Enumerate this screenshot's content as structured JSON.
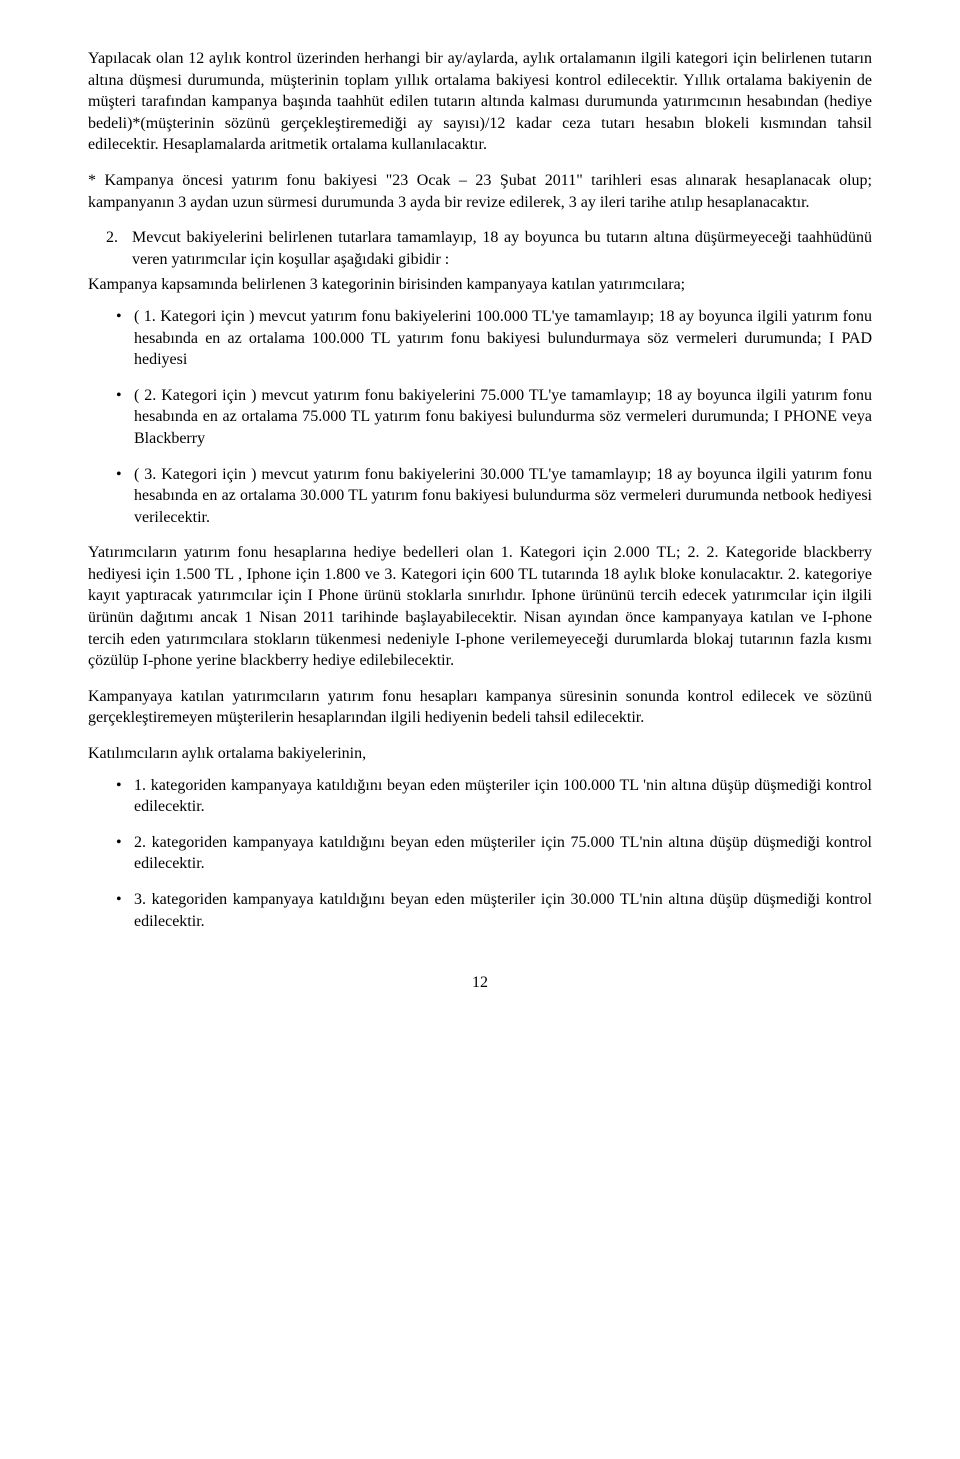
{
  "p1": "Yapılacak olan 12 aylık kontrol üzerinden herhangi bir ay/aylarda, aylık ortalamanın ilgili kategori için belirlenen tutarın altına düşmesi durumunda, müşterinin toplam yıllık ortalama bakiyesi kontrol edilecektir. Yıllık ortalama bakiyenin de müşteri tarafından kampanya başında taahhüt edilen tutarın altında kalması durumunda yatırımcının hesabından (hediye bedeli)*(müşterinin sözünü gerçekleştiremediği ay sayısı)/12 kadar ceza tutarı hesabın blokeli kısmından tahsil edilecektir. Hesaplamalarda aritmetik ortalama kullanılacaktır.",
  "p2": "* Kampanya öncesi yatırım fonu bakiyesi \"23 Ocak  – 23 Şubat 2011\" tarihleri esas alınarak hesaplanacak olup; kampanyanın 3 aydan uzun sürmesi durumunda 3 ayda bir revize edilerek, 3 ay ileri tarihe atılıp hesaplanacaktır.",
  "num2_num": "2.",
  "num2_text": "Mevcut bakiyelerini belirlenen tutarlara tamamlayıp, 18 ay boyunca bu tutarın altına düşürmeyeceği taahhüdünü veren yatırımcılar için koşullar aşağıdaki gibidir :",
  "p3": "Kampanya kapsamında belirlenen 3 kategorinin birisinden kampanyaya katılan yatırımcılara;",
  "b1": "( 1. Kategori için ) mevcut yatırım fonu bakiyelerini 100.000 TL'ye tamamlayıp; 18 ay boyunca ilgili yatırım fonu hesabında en az ortalama 100.000 TL yatırım fonu bakiyesi bulundurmaya söz vermeleri durumunda;  I PAD hediyesi",
  "b2": "( 2. Kategori için ) mevcut yatırım fonu bakiyelerini 75.000 TL'ye tamamlayıp; 18 ay boyunca ilgili yatırım fonu hesabında en az ortalama 75.000 TL yatırım fonu bakiyesi bulundurma söz vermeleri durumunda;  I PHONE veya Blackberry",
  "b3": "( 3. Kategori için ) mevcut yatırım fonu bakiyelerini 30.000 TL'ye tamamlayıp; 18 ay boyunca ilgili yatırım fonu hesabında en az ortalama 30.000 TL yatırım fonu bakiyesi bulundurma söz vermeleri durumunda netbook hediyesi verilecektir.",
  "p4": "Yatırımcıların yatırım fonu hesaplarına hediye bedelleri olan 1. Kategori için 2.000 TL; 2. 2. Kategoride blackberry hediyesi için 1.500 TL , Iphone için 1.800 ve 3. Kategori için 600 TL tutarında 18 aylık bloke konulacaktır. 2. kategoriye  kayıt yaptıracak yatırımcılar için I Phone ürünü stoklarla sınırlıdır.  Iphone ürününü tercih edecek yatırımcılar için ilgili ürünün dağıtımı ancak 1 Nisan 2011 tarihinde başlayabilecektir. Nisan ayından önce kampanyaya katılan ve I-phone tercih eden yatırımcılara stokların tükenmesi nedeniyle I-phone verilemeyeceği durumlarda blokaj tutarının fazla kısmı çözülüp I-phone yerine blackberry hediye edilebilecektir.",
  "p5": "Kampanyaya katılan yatırımcıların yatırım fonu hesapları kampanya süresinin sonunda kontrol edilecek ve sözünü gerçekleştiremeyen müşterilerin hesaplarından ilgili hediyenin bedeli tahsil edilecektir.",
  "p6": "Katılımcıların aylık ortalama bakiyelerinin,",
  "b4": "1. kategoriden kampanyaya katıldığını beyan eden müşteriler için 100.000 TL 'nin altına düşüp düşmediği kontrol edilecektir.",
  "b5": "2. kategoriden kampanyaya katıldığını beyan eden müşteriler için 75.000 TL'nin altına düşüp düşmediği kontrol edilecektir.",
  "b6": "3. kategoriden kampanyaya katıldığını beyan eden müşteriler için 30.000 TL'nin altına düşüp düşmediği kontrol edilecektir.",
  "page_number": "12"
}
